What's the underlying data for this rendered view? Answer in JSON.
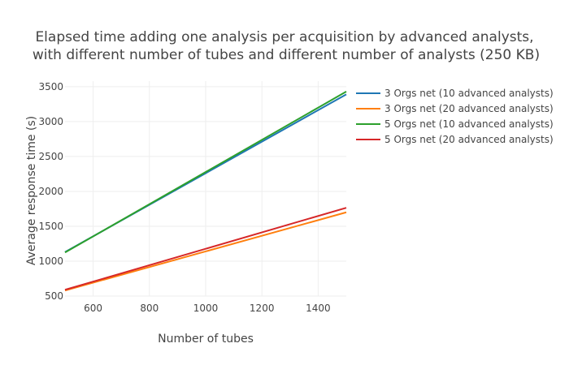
{
  "chart_data": {
    "type": "line",
    "title_lines": [
      "Elapsed time adding one analysis per acquisition by advanced analysts,",
      "with different number of tubes and different number of analysts (250 KB)"
    ],
    "xlabel": "Number of tubes",
    "ylabel": "Average response time (s)",
    "xlim": [
      500,
      1500
    ],
    "ylim": [
      500,
      3580
    ],
    "xticks": [
      600,
      800,
      1000,
      1200,
      1400
    ],
    "yticks": [
      500,
      1000,
      1500,
      2000,
      2500,
      3000,
      3500
    ],
    "grid": true,
    "legend_position": "right",
    "series": [
      {
        "name": "3 Orgs net (10 advanced analysts)",
        "color": "#1f77b4",
        "x": [
          500,
          1500
        ],
        "y": [
          1130,
          3390
        ]
      },
      {
        "name": "3 Orgs net (20 advanced analysts)",
        "color": "#ff7f0e",
        "x": [
          500,
          1500
        ],
        "y": [
          580,
          1700
        ]
      },
      {
        "name": "5 Orgs net (10 advanced analysts)",
        "color": "#2ca02c",
        "x": [
          500,
          1500
        ],
        "y": [
          1125,
          3430
        ]
      },
      {
        "name": "5 Orgs net (20 advanced analysts)",
        "color": "#d62728",
        "x": [
          500,
          1500
        ],
        "y": [
          590,
          1765
        ]
      }
    ]
  }
}
